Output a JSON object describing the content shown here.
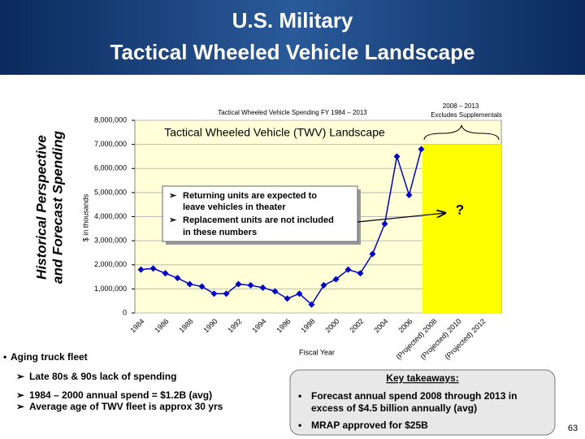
{
  "header": {
    "title_lines": [
      "U.S. Military",
      "Tactical Wheeled Vehicle Landscape"
    ]
  },
  "side_label": {
    "lines": [
      "Historical Perspective",
      "and Forecast Spending"
    ]
  },
  "chart_data": {
    "type": "line",
    "title": "Tactical Wheeled Vehicle Spending FY 1984 – 2013",
    "inner_title": "Tactical Wheeled Vehicle (TWV) Landscape",
    "y_label": "$ in thousands",
    "x_label": "Fiscal Year",
    "categories": [
      "1984",
      null,
      "1986",
      null,
      "1988",
      null,
      "1990",
      null,
      "1992",
      null,
      "1994",
      null,
      "1996",
      null,
      "1998",
      null,
      "2000",
      null,
      "2002",
      null,
      "2004",
      null,
      "2006",
      null,
      "(Projected) 2008",
      null,
      "(Projected) 2010",
      null,
      "(Projected) 2012",
      null
    ],
    "series": [
      {
        "color": "#0000cc",
        "values": [
          1800000,
          1850000,
          1650000,
          1450000,
          1200000,
          1100000,
          800000,
          800000,
          1200000,
          1150000,
          1050000,
          900000,
          600000,
          800000,
          350000,
          1150000,
          1400000,
          1800000,
          1650000,
          2450000,
          3700000,
          6500000,
          4900000,
          6800000,
          null,
          null,
          null,
          null,
          null,
          null
        ]
      }
    ],
    "ylim": [
      0,
      8000000
    ],
    "yticks": [
      0,
      {
        "value": 1000000,
        "label": "1,000,000"
      },
      {
        "value": 2000000,
        "label": "2,000,000"
      },
      {
        "value": 3000000,
        "label": "3,000,000"
      },
      {
        "value": 4000000,
        "label": "4,000,000"
      },
      {
        "value": 5000000,
        "label": "5,000,000"
      },
      {
        "value": 6000000,
        "label": "6,000,000"
      },
      {
        "value": 7000000,
        "label": "7,000,000"
      },
      {
        "value": 8000000,
        "label": "8,000,000"
      }
    ],
    "grid": true,
    "forecast_note": [
      "2008 – 2013",
      "Excludes Supplementals"
    ],
    "callout": [
      [
        "Returning units are expected to",
        "leave vehicles in theater"
      ],
      [
        "Replacement units are not included",
        "in these numbers"
      ]
    ],
    "question": "?"
  },
  "bullets": {
    "main": "Aging truck fleet",
    "items": [
      "Late 80s & 90s lack of spending",
      "1984 – 2000 annual spend = $1.2B (avg)",
      "Average age of TWV fleet is approx 30 yrs"
    ]
  },
  "takeaways": {
    "title": "Key takeaways:",
    "items": [
      [
        "Forecast annual spend 2008 through 2013 in",
        "excess of $4.5 billion annually (avg)"
      ],
      [
        "MRAP approved for $25B"
      ]
    ]
  },
  "page_number": "63"
}
